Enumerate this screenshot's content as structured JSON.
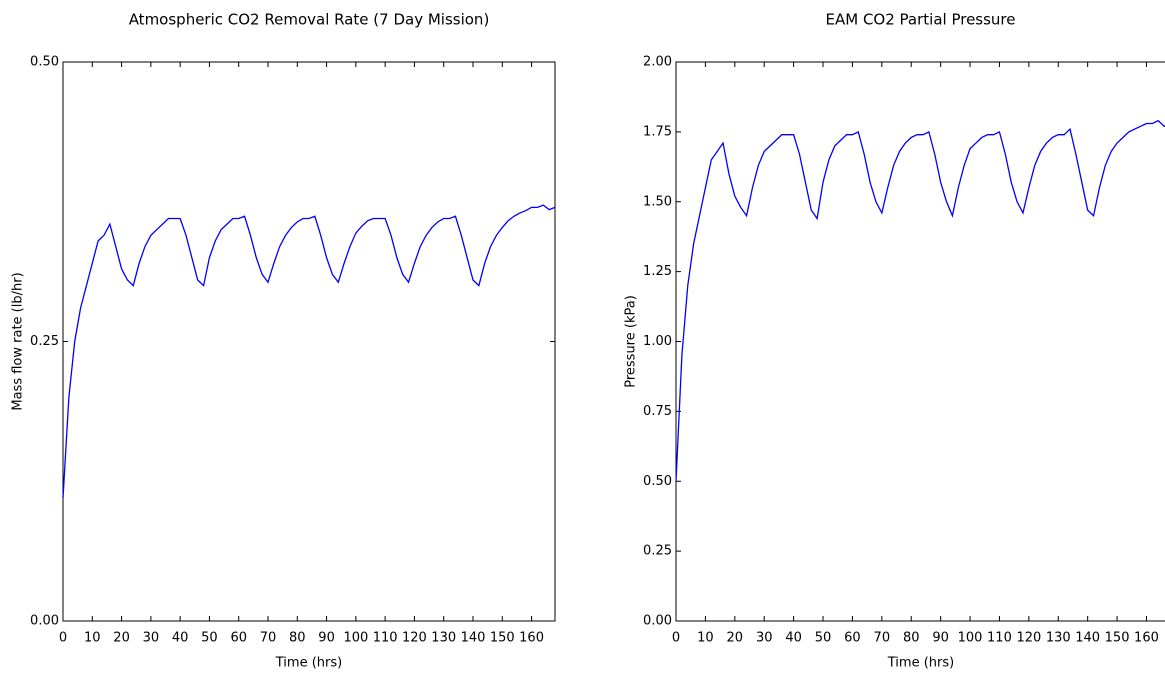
{
  "chart_data": [
    {
      "type": "line",
      "title": "Atmospheric CO2 Removal Rate (7 Day Mission)",
      "x_label": "Time (hrs)",
      "y_label": "Mass flow rate (lb/hr)",
      "color": "#0000ff",
      "xlim": [
        0,
        168
      ],
      "ylim": [
        0,
        0.5
      ],
      "xticks": [
        0,
        10,
        20,
        30,
        40,
        50,
        60,
        70,
        80,
        90,
        100,
        110,
        120,
        130,
        140,
        150,
        160
      ],
      "yticks": [
        {
          "value": 0,
          "label": "0.00"
        },
        {
          "value": 0.25,
          "label": "0.25"
        },
        {
          "value": 0.5,
          "label": "0.50"
        }
      ],
      "x": [
        0,
        2,
        4,
        6,
        8,
        10,
        12,
        14,
        16,
        18,
        20,
        22,
        24,
        26,
        28,
        30,
        32,
        34,
        36,
        38,
        40,
        42,
        44,
        46,
        48,
        50,
        52,
        54,
        56,
        58,
        60,
        62,
        64,
        66,
        68,
        70,
        72,
        74,
        76,
        78,
        80,
        82,
        84,
        86,
        88,
        90,
        92,
        94,
        96,
        98,
        100,
        102,
        104,
        106,
        108,
        110,
        112,
        114,
        116,
        118,
        120,
        122,
        124,
        126,
        128,
        130,
        132,
        134,
        136,
        138,
        140,
        142,
        144,
        146,
        148,
        150,
        152,
        154,
        156,
        158,
        160,
        162,
        164,
        166,
        168
      ],
      "values": [
        0.11,
        0.2,
        0.25,
        0.28,
        0.3,
        0.32,
        0.34,
        0.345,
        0.355,
        0.335,
        0.315,
        0.305,
        0.3,
        0.32,
        0.335,
        0.345,
        0.35,
        0.355,
        0.36,
        0.36,
        0.36,
        0.345,
        0.325,
        0.305,
        0.3,
        0.325,
        0.34,
        0.35,
        0.355,
        0.36,
        0.36,
        0.362,
        0.345,
        0.325,
        0.31,
        0.303,
        0.32,
        0.335,
        0.345,
        0.352,
        0.357,
        0.36,
        0.36,
        0.362,
        0.345,
        0.325,
        0.31,
        0.303,
        0.32,
        0.335,
        0.347,
        0.353,
        0.358,
        0.36,
        0.36,
        0.36,
        0.345,
        0.325,
        0.31,
        0.303,
        0.32,
        0.335,
        0.345,
        0.352,
        0.357,
        0.36,
        0.36,
        0.362,
        0.345,
        0.325,
        0.305,
        0.3,
        0.32,
        0.335,
        0.345,
        0.352,
        0.358,
        0.362,
        0.365,
        0.367,
        0.37,
        0.37,
        0.372,
        0.368,
        0.37
      ]
    },
    {
      "type": "line",
      "title": "EAM CO2 Partial Pressure",
      "x_label": "Time (hrs)",
      "y_label": "Pressure (kPa)",
      "color": "#0000ff",
      "xlim": [
        0,
        168
      ],
      "ylim": [
        0,
        2
      ],
      "xticks": [
        0,
        10,
        20,
        30,
        40,
        50,
        60,
        70,
        80,
        90,
        100,
        110,
        120,
        130,
        140,
        150,
        160
      ],
      "yticks": [
        {
          "value": 0,
          "label": "0.00"
        },
        {
          "value": 0.25,
          "label": "0.25"
        },
        {
          "value": 0.5,
          "label": "0.50"
        },
        {
          "value": 0.75,
          "label": "0.75"
        },
        {
          "value": 1,
          "label": "1.00"
        },
        {
          "value": 1.25,
          "label": "1.25"
        },
        {
          "value": 1.5,
          "label": "1.50"
        },
        {
          "value": 1.75,
          "label": "1.75"
        },
        {
          "value": 2,
          "label": "2.00"
        }
      ],
      "x": [
        0,
        2,
        4,
        6,
        8,
        10,
        12,
        14,
        16,
        18,
        20,
        22,
        24,
        26,
        28,
        30,
        32,
        34,
        36,
        38,
        40,
        42,
        44,
        46,
        48,
        50,
        52,
        54,
        56,
        58,
        60,
        62,
        64,
        66,
        68,
        70,
        72,
        74,
        76,
        78,
        80,
        82,
        84,
        86,
        88,
        90,
        92,
        94,
        96,
        98,
        100,
        102,
        104,
        106,
        108,
        110,
        112,
        114,
        116,
        118,
        120,
        122,
        124,
        126,
        128,
        130,
        132,
        134,
        136,
        138,
        140,
        142,
        144,
        146,
        148,
        150,
        152,
        154,
        156,
        158,
        160,
        162,
        164,
        166,
        168
      ],
      "values": [
        0.5,
        0.95,
        1.2,
        1.35,
        1.45,
        1.55,
        1.65,
        1.68,
        1.71,
        1.6,
        1.52,
        1.48,
        1.45,
        1.55,
        1.63,
        1.68,
        1.7,
        1.72,
        1.74,
        1.74,
        1.74,
        1.67,
        1.57,
        1.47,
        1.44,
        1.57,
        1.65,
        1.7,
        1.72,
        1.74,
        1.74,
        1.75,
        1.67,
        1.57,
        1.5,
        1.46,
        1.55,
        1.63,
        1.68,
        1.71,
        1.73,
        1.74,
        1.74,
        1.75,
        1.67,
        1.57,
        1.5,
        1.45,
        1.55,
        1.63,
        1.69,
        1.71,
        1.73,
        1.74,
        1.74,
        1.75,
        1.67,
        1.57,
        1.5,
        1.46,
        1.55,
        1.63,
        1.68,
        1.71,
        1.73,
        1.74,
        1.74,
        1.76,
        1.67,
        1.57,
        1.47,
        1.45,
        1.55,
        1.63,
        1.68,
        1.71,
        1.73,
        1.75,
        1.76,
        1.77,
        1.78,
        1.78,
        1.79,
        1.77,
        1.78
      ]
    }
  ]
}
